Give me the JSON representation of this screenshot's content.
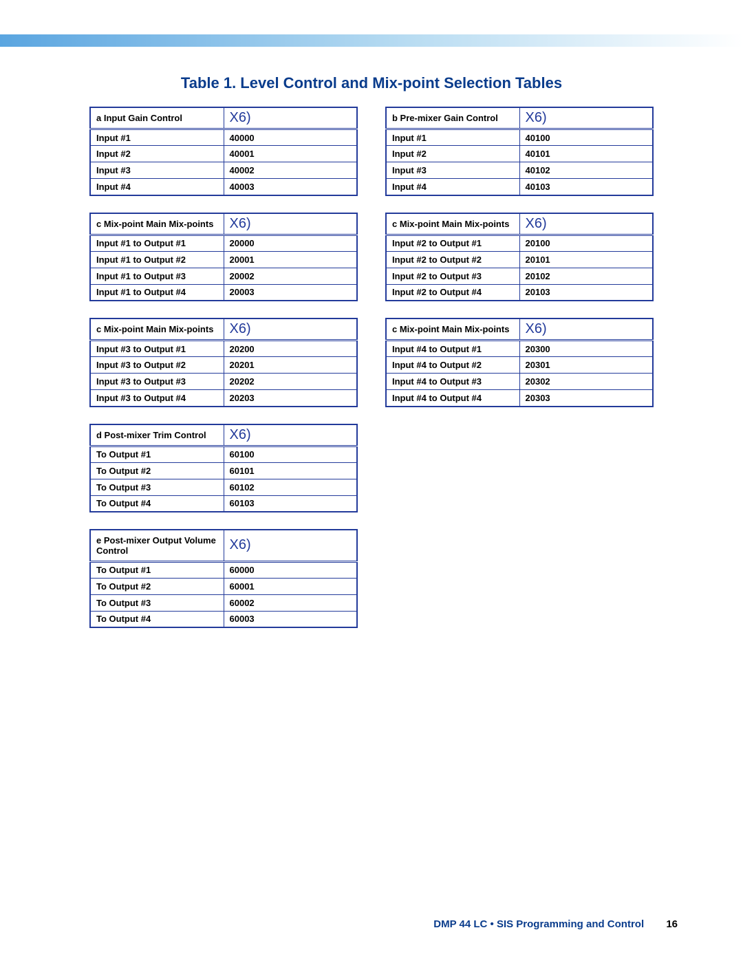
{
  "title": "Table 1.   Level Control and Mix-point Selection Tables",
  "x6_label": "X6)",
  "colors": {
    "title_color": "#0a3c8c",
    "border_color": "#223a9a",
    "x6_color": "#223a9a",
    "footer_color": "#0a3c8c",
    "band_gradient_start": "#5aa5e0",
    "band_gradient_end": "#ffffff"
  },
  "tables": {
    "a": {
      "header": "a   Input Gain Control",
      "rows": [
        [
          "Input #1",
          "40000"
        ],
        [
          "Input #2",
          "40001"
        ],
        [
          "Input #3",
          "40002"
        ],
        [
          "Input #4",
          "40003"
        ]
      ]
    },
    "b": {
      "header": "b   Pre-mixer Gain Control",
      "rows": [
        [
          "Input #1",
          "40100"
        ],
        [
          "Input #2",
          "40101"
        ],
        [
          "Input #3",
          "40102"
        ],
        [
          "Input #4",
          "40103"
        ]
      ]
    },
    "c1": {
      "header": "c   Mix-point Main Mix-points",
      "rows": [
        [
          "Input #1 to Output #1",
          "20000"
        ],
        [
          "Input #1 to Output #2",
          "20001"
        ],
        [
          "Input #1 to Output #3",
          "20002"
        ],
        [
          "Input #1 to Output #4",
          "20003"
        ]
      ]
    },
    "c2": {
      "header": "c   Mix-point Main Mix-points",
      "rows": [
        [
          "Input #2 to Output #1",
          "20100"
        ],
        [
          "Input #2 to Output #2",
          "20101"
        ],
        [
          "Input #2 to Output #3",
          "20102"
        ],
        [
          "Input #2 to Output #4",
          "20103"
        ]
      ]
    },
    "c3": {
      "header": "c   Mix-point Main Mix-points",
      "rows": [
        [
          "Input #3 to Output #1",
          "20200"
        ],
        [
          "Input #3 to Output #2",
          "20201"
        ],
        [
          "Input #3 to Output #3",
          "20202"
        ],
        [
          "Input #3 to Output #4",
          "20203"
        ]
      ]
    },
    "c4": {
      "header": "c   Mix-point Main Mix-points",
      "rows": [
        [
          "Input #4 to Output #1",
          "20300"
        ],
        [
          "Input #4 to Output #2",
          "20301"
        ],
        [
          "Input #4 to Output #3",
          "20302"
        ],
        [
          "Input #4 to Output #4",
          "20303"
        ]
      ]
    },
    "d": {
      "header": "d   Post-mixer Trim Control",
      "rows": [
        [
          "To Output #1",
          "60100"
        ],
        [
          "To Output #2",
          "60101"
        ],
        [
          "To Output #3",
          "60102"
        ],
        [
          "To Output #4",
          "60103"
        ]
      ]
    },
    "e": {
      "header": "e   Post-mixer Output Volume Control",
      "rows": [
        [
          "To Output #1",
          "60000"
        ],
        [
          "To Output #2",
          "60001"
        ],
        [
          "To Output #3",
          "60002"
        ],
        [
          "To Output #4",
          "60003"
        ]
      ]
    }
  },
  "footer": {
    "text": "DMP 44 LC • SIS Programming and Control",
    "page": "16"
  }
}
